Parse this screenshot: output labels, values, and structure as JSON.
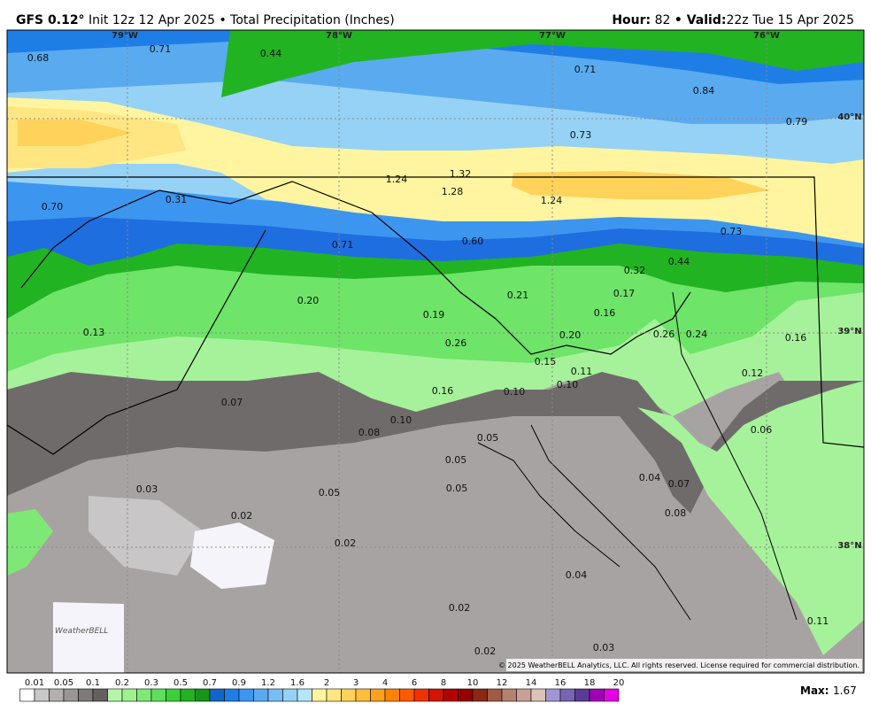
{
  "header": {
    "model": "GFS 0.12°",
    "run": "Init 12z 12 Apr 2025 • Total Precipitation (Inches)",
    "hour_label": "Hour:",
    "hour": "82",
    "valid_label": "• Valid:",
    "valid": "22z Tue 15 Apr 2025"
  },
  "map": {
    "longitudes": [
      "79°W",
      "78°W",
      "77°W",
      "76°W"
    ],
    "latitudes": [
      "40°N",
      "39°N",
      "38°N"
    ],
    "point_values": [
      "0.68",
      "0.71",
      "0.44",
      "0.71",
      "0.84",
      "0.73",
      "0.79",
      "0.70",
      "0.31",
      "1.24",
      "1.32",
      "1.28",
      "1.24",
      "0.71",
      "0.60",
      "0.73",
      "0.32",
      "0.44",
      "0.17",
      "0.21",
      "0.20",
      "0.19",
      "0.16",
      "0.13",
      "0.26",
      "0.20",
      "0.26",
      "0.24",
      "0.16",
      "0.15",
      "0.11",
      "0.10",
      "0.10",
      "0.12",
      "0.16",
      "0.07",
      "0.10",
      "0.08",
      "0.05",
      "0.06",
      "0.05",
      "0.04",
      "0.07",
      "0.05",
      "0.03",
      "0.05",
      "0.08",
      "0.02",
      "0.02",
      "0.04",
      "0.02",
      "0.11",
      "0.03",
      "0.02"
    ],
    "logo": "WeatherBELL",
    "copyright": "© 2025 WeatherBELL Analytics, LLC. All rights reserved. License required for commercial distribution."
  },
  "colorbar": {
    "labels": [
      "0.01",
      "0.05",
      "0.1",
      "0.2",
      "0.3",
      "0.5",
      "0.7",
      "0.9",
      "1.2",
      "1.6",
      "2",
      "3",
      "4",
      "6",
      "8",
      "10",
      "12",
      "14",
      "16",
      "18",
      "20"
    ],
    "colors": [
      "#ffffff",
      "#c8c8c8",
      "#b4b0b0",
      "#9a9696",
      "#7e7a7a",
      "#646060",
      "#b6f5a8",
      "#9ff08e",
      "#7ee876",
      "#5ede5a",
      "#3ccf3a",
      "#22b322",
      "#14961a",
      "#1464c8",
      "#1e7ee6",
      "#3c96f0",
      "#5aaaf0",
      "#78bef5",
      "#96d2f5",
      "#b4e6fa",
      "#fff5a0",
      "#ffe682",
      "#ffd25a",
      "#ffbe3c",
      "#ffa01e",
      "#ff8200",
      "#ff5a00",
      "#f03200",
      "#d21400",
      "#b40000",
      "#960000",
      "#8c2814",
      "#a05a46",
      "#b4826e",
      "#c8a096",
      "#dcc3b9",
      "#a096d2",
      "#7864b4",
      "#5a3c96",
      "#a000b4",
      "#e600e6"
    ]
  },
  "max": {
    "label": "Max:",
    "value": "1.67"
  }
}
